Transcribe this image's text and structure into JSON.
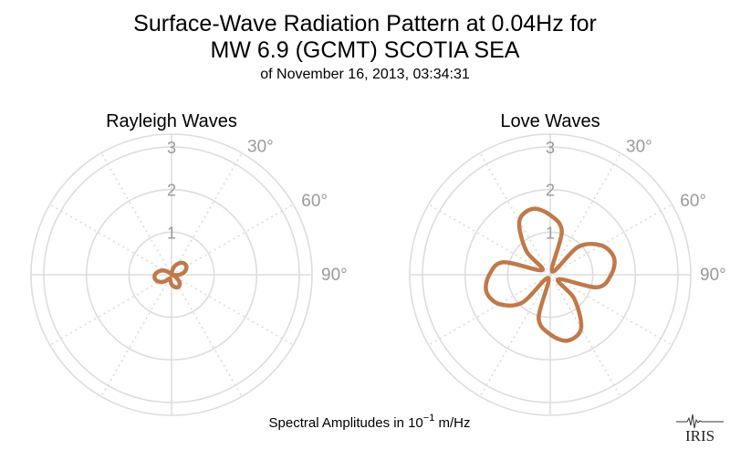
{
  "header": {
    "title_line1": "Surface-Wave Radiation Pattern at 0.04Hz for",
    "title_line2": "MW 6.9 (GCMT) SCOTIA SEA",
    "subtitle": "of November 16, 2013, 03:34:31"
  },
  "footer": {
    "label_prefix": "Spectral Amplitudes in 10",
    "label_exponent": "−1",
    "label_unit": " m/Hz"
  },
  "logo": {
    "text": "IRIS"
  },
  "colors": {
    "pattern": "#c0794a",
    "grid": "#dddddd",
    "tick_text": "#9a9a9a"
  },
  "chart_data": [
    {
      "type": "polar-line",
      "title": "Rayleigh Waves",
      "r_ticks": [
        "1",
        "2",
        "3"
      ],
      "r_max": 3.3,
      "angle_labels": [
        "30°",
        "60°",
        "90°"
      ],
      "azimuth_deg": [
        0,
        15,
        30,
        45,
        60,
        75,
        90,
        105,
        120,
        135,
        150,
        165,
        180,
        195,
        210,
        225,
        240,
        255,
        270,
        285,
        300,
        315,
        330,
        345,
        360
      ],
      "amplitude": [
        0.02,
        0.17,
        0.3,
        0.39,
        0.4,
        0.33,
        0.19,
        0.04,
        0.13,
        0.27,
        0.33,
        0.3,
        0.22,
        0.12,
        0.1,
        0.22,
        0.33,
        0.4,
        0.39,
        0.31,
        0.2,
        0.07,
        0.04,
        0.01,
        0.02
      ]
    },
    {
      "type": "polar-line",
      "title": "Love Waves",
      "r_ticks": [
        "1",
        "2",
        "3"
      ],
      "r_max": 3.3,
      "angle_labels": [
        "30°",
        "60°",
        "90°"
      ],
      "azimuth_deg": [
        0,
        15,
        30,
        45,
        60,
        75,
        90,
        105,
        120,
        135,
        150,
        165,
        180,
        195,
        210,
        225,
        240,
        255,
        270,
        285,
        300,
        315,
        330,
        345,
        360
      ],
      "amplitude": [
        1.4,
        1.05,
        0.09,
        0.92,
        1.38,
        1.55,
        1.43,
        1.14,
        0.22,
        0.8,
        1.45,
        1.6,
        1.4,
        1.05,
        0.09,
        0.92,
        1.38,
        1.55,
        1.43,
        1.14,
        0.22,
        0.8,
        1.45,
        1.6,
        1.4
      ]
    }
  ]
}
